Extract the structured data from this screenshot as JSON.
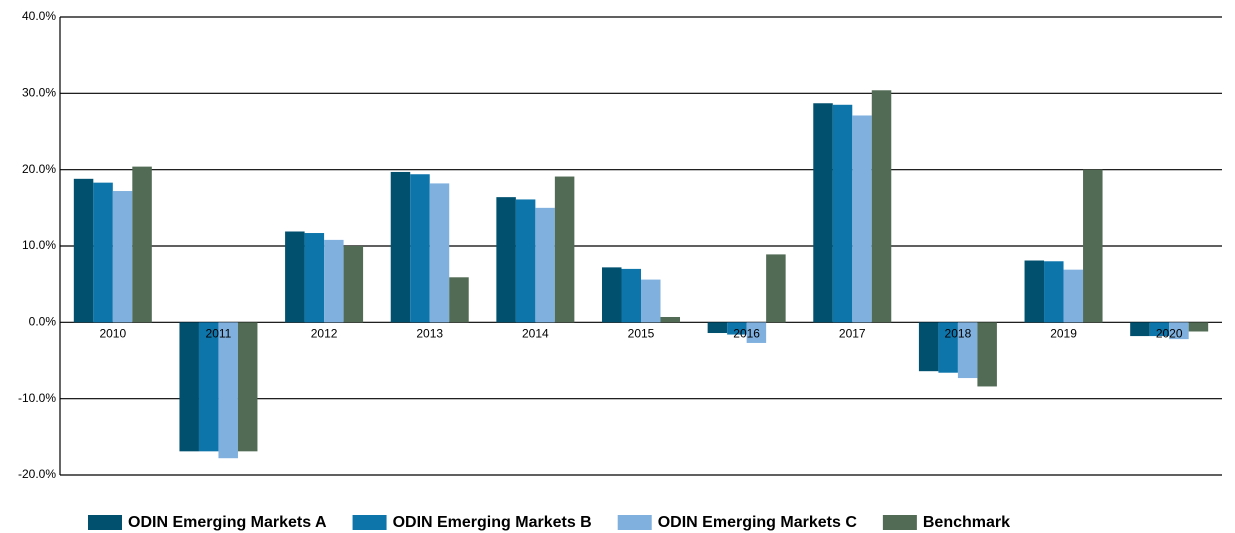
{
  "chart_data": {
    "type": "bar",
    "categories": [
      "2010",
      "2011",
      "2012",
      "2013",
      "2014",
      "2015",
      "2016",
      "2017",
      "2018",
      "2019",
      "2020"
    ],
    "series": [
      {
        "name": "ODIN Emerging Markets A",
        "color": "#00506e",
        "values": [
          18.8,
          -16.9,
          11.9,
          19.7,
          16.4,
          7.2,
          -1.4,
          28.7,
          -6.4,
          8.1,
          -1.8
        ]
      },
      {
        "name": "ODIN Emerging Markets B",
        "color": "#0e75ab",
        "values": [
          18.3,
          -16.9,
          11.7,
          19.4,
          16.1,
          7.0,
          -1.6,
          28.5,
          -6.6,
          8.0,
          -1.8
        ]
      },
      {
        "name": "ODIN Emerging Markets C",
        "color": "#7fb0de",
        "values": [
          17.2,
          -17.8,
          10.8,
          18.2,
          15.0,
          5.6,
          -2.7,
          27.1,
          -7.3,
          6.9,
          -2.2
        ]
      },
      {
        "name": "Benchmark",
        "color": "#526b55",
        "values": [
          20.4,
          -16.9,
          10.0,
          5.9,
          19.1,
          0.7,
          8.9,
          30.4,
          -8.4,
          20.0,
          -1.2
        ]
      }
    ],
    "ylim": [
      -20,
      40
    ],
    "yticks": [
      {
        "value": -20,
        "label": "-20.0%"
      },
      {
        "value": -10,
        "label": "-10.0%"
      },
      {
        "value": 0,
        "label": "0.0%"
      },
      {
        "value": 10,
        "label": "10.0%"
      },
      {
        "value": 20,
        "label": "20.0%"
      },
      {
        "value": 30,
        "label": "30.0%"
      },
      {
        "value": 40,
        "label": "40.0%"
      }
    ],
    "grid": true,
    "legend": "bottom"
  }
}
